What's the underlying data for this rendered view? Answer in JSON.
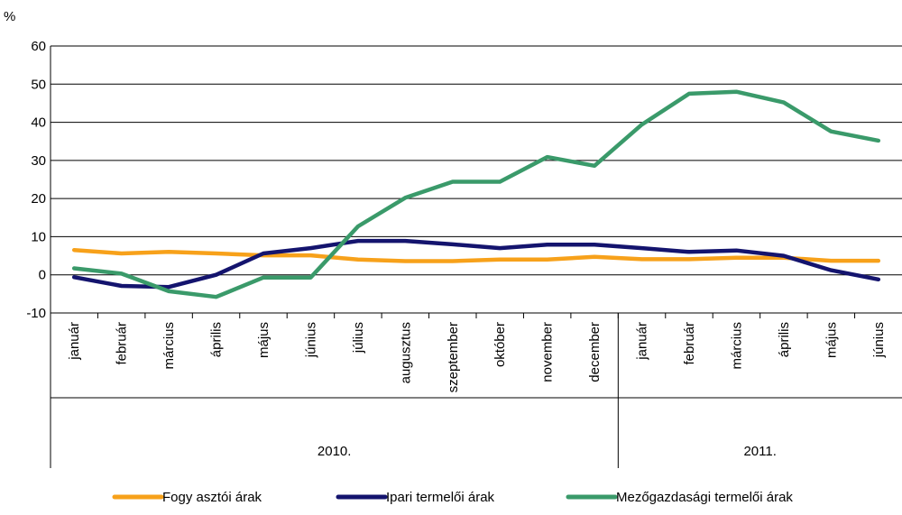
{
  "chart_data": {
    "type": "line",
    "ylabel": "%",
    "ylim": [
      -10,
      60
    ],
    "yticks": [
      "60",
      "50",
      "40",
      "30",
      "20",
      "10",
      "0",
      "-10"
    ],
    "categories": [
      "január",
      "február",
      "március",
      "április",
      "május",
      "június",
      "július",
      "augusztus",
      "szeptember",
      "október",
      "november",
      "december",
      "január",
      "február",
      "március",
      "április",
      "május",
      "június"
    ],
    "groups": [
      {
        "label": "2010.",
        "count": 12
      },
      {
        "label": "2011.",
        "count": 6
      }
    ],
    "grid": true,
    "legend_position": "bottom",
    "series": [
      {
        "name": "Fogy asztói árak",
        "color": "#F7A11A",
        "values": [
          6.5,
          5.6,
          6.0,
          5.6,
          5.1,
          5.1,
          4.0,
          3.6,
          3.6,
          4.0,
          4.0,
          4.7,
          4.1,
          4.1,
          4.5,
          4.5,
          3.7,
          3.7
        ]
      },
      {
        "name": "Ipari termelői árak",
        "color": "#14146E",
        "values": [
          -0.6,
          -2.9,
          -3.2,
          0.0,
          5.6,
          7.0,
          8.9,
          8.9,
          8.0,
          7.0,
          7.9,
          7.9,
          7.0,
          6.0,
          6.4,
          5.0,
          1.2,
          -1.2
        ]
      },
      {
        "name": "Mezőgazdasági termelői árak",
        "color": "#3A9A6A",
        "values": [
          1.7,
          0.3,
          -4.3,
          -5.8,
          -0.7,
          -0.7,
          12.7,
          20.2,
          24.4,
          24.4,
          30.9,
          28.6,
          39.4,
          47.5,
          48.0,
          45.2,
          37.6,
          35.2
        ]
      }
    ]
  }
}
